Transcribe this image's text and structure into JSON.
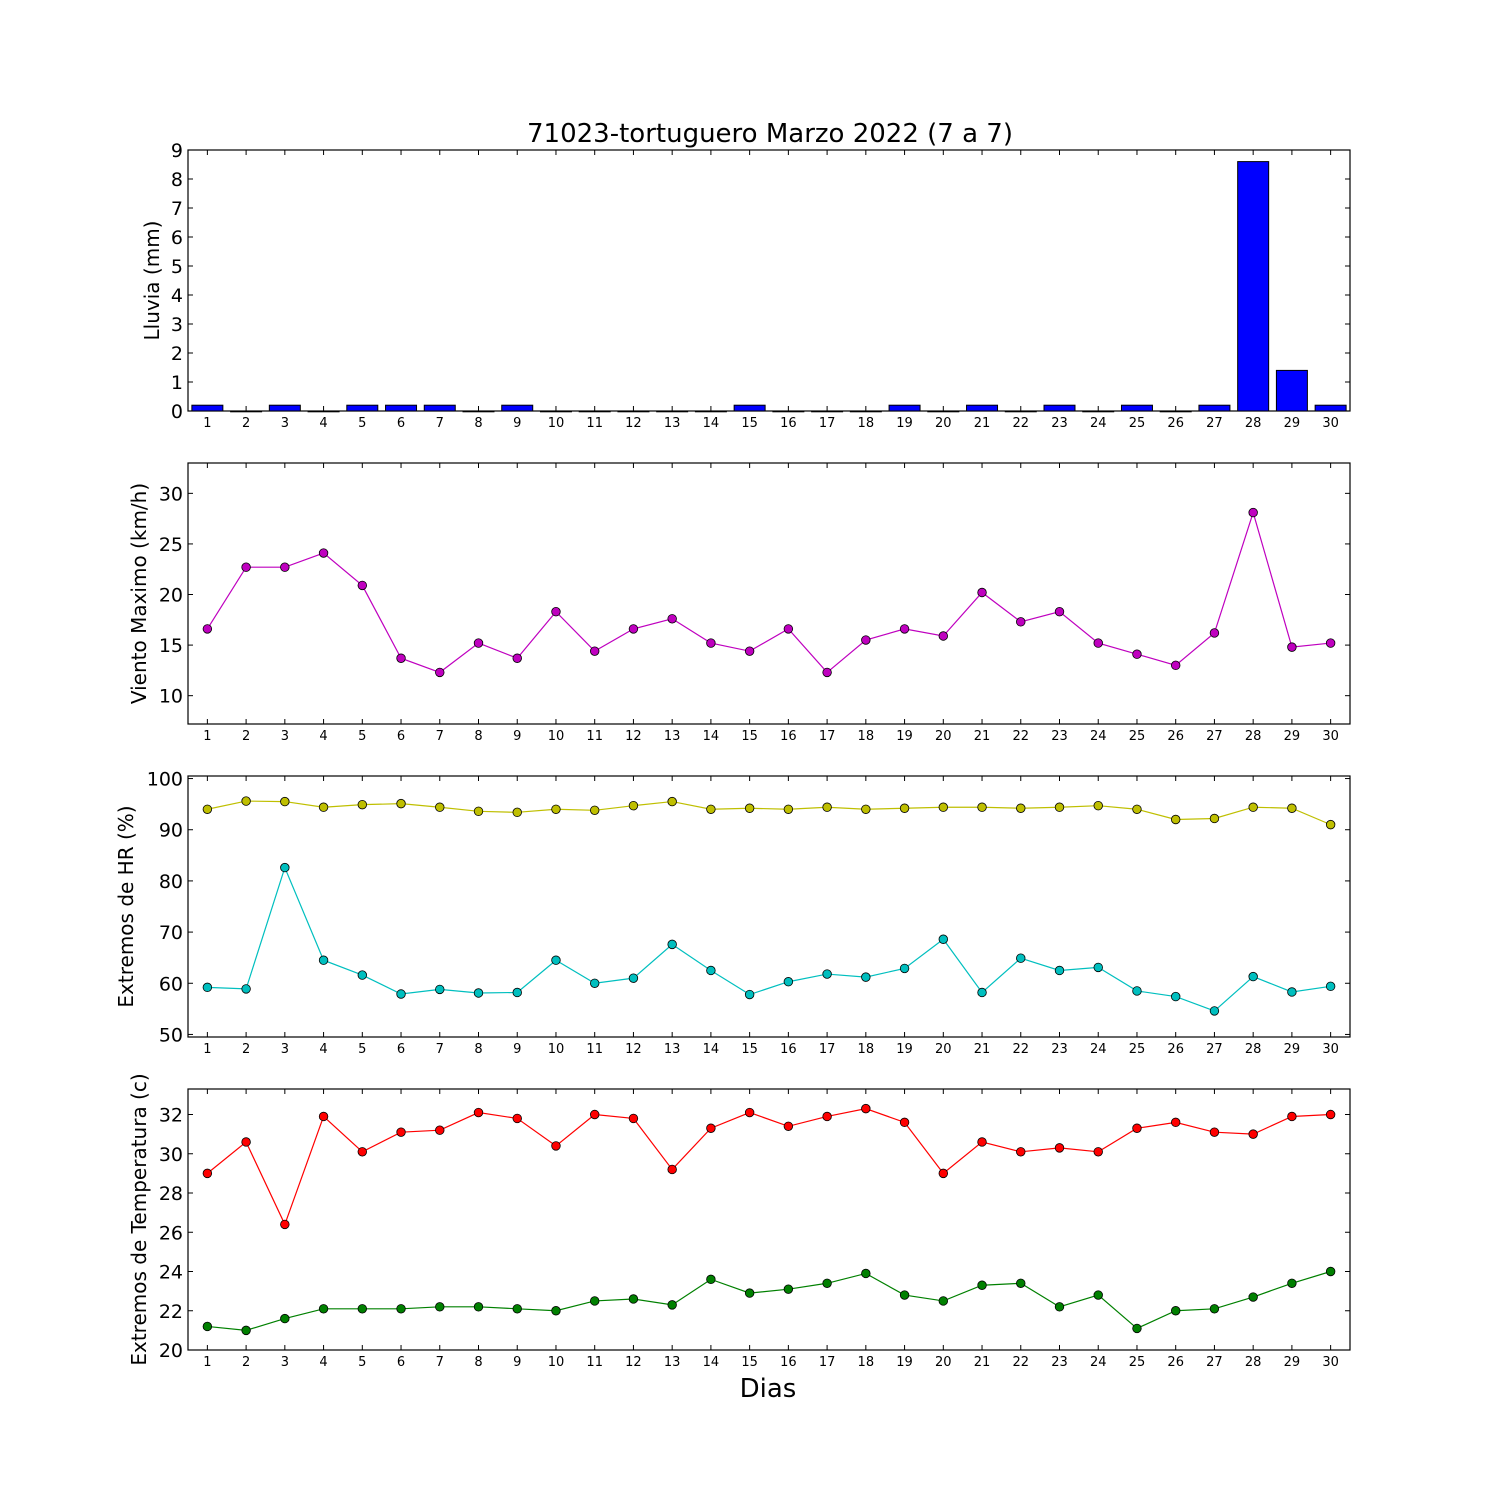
{
  "title": "71023-tortuguero Marzo 2022  (7 a 7)",
  "xlabel": "Dias",
  "chart_data": [
    {
      "type": "bar",
      "ylabel": "Lluvia (mm)",
      "ylim": [
        0,
        9
      ],
      "yticks": [
        0,
        1,
        2,
        3,
        4,
        5,
        6,
        7,
        8,
        9
      ],
      "categories": [
        1,
        2,
        3,
        4,
        5,
        6,
        7,
        8,
        9,
        10,
        11,
        12,
        13,
        14,
        15,
        16,
        17,
        18,
        19,
        20,
        21,
        22,
        23,
        24,
        25,
        26,
        27,
        28,
        29,
        30
      ],
      "series": [
        {
          "color": "#0000ff",
          "values": [
            0.2,
            0,
            0.2,
            0,
            0.2,
            0.2,
            0.2,
            0,
            0.2,
            0,
            0,
            0,
            0,
            0,
            0.2,
            0,
            0,
            0,
            0.2,
            0,
            0.2,
            0,
            0.2,
            0,
            0.2,
            0,
            0.2,
            8.6,
            1.4,
            0.2
          ]
        }
      ]
    },
    {
      "type": "line",
      "ylabel": "Viento Maximo (km/h)",
      "ylim": [
        7.2,
        33
      ],
      "yticks": [
        10,
        15,
        20,
        25,
        30
      ],
      "categories": [
        1,
        2,
        3,
        4,
        5,
        6,
        7,
        8,
        9,
        10,
        11,
        12,
        13,
        14,
        15,
        16,
        17,
        18,
        19,
        20,
        21,
        22,
        23,
        24,
        25,
        26,
        27,
        28,
        29,
        30
      ],
      "series": [
        {
          "color": "#bf00bf",
          "values": [
            16.6,
            22.7,
            22.7,
            24.1,
            20.9,
            13.7,
            12.3,
            15.2,
            13.7,
            18.3,
            14.4,
            16.6,
            17.6,
            15.2,
            14.4,
            16.6,
            12.3,
            15.5,
            16.6,
            15.9,
            20.2,
            17.3,
            18.3,
            15.2,
            14.1,
            13.0,
            16.2,
            28.1,
            14.8,
            15.2
          ]
        }
      ]
    },
    {
      "type": "line",
      "ylabel": "Extremos de HR (%)",
      "ylim": [
        49.5,
        100.5
      ],
      "yticks": [
        50,
        60,
        70,
        80,
        90,
        100
      ],
      "categories": [
        1,
        2,
        3,
        4,
        5,
        6,
        7,
        8,
        9,
        10,
        11,
        12,
        13,
        14,
        15,
        16,
        17,
        18,
        19,
        20,
        21,
        22,
        23,
        24,
        25,
        26,
        27,
        28,
        29,
        30
      ],
      "series": [
        {
          "color": "#bfbf00",
          "values": [
            94.0,
            95.6,
            95.5,
            94.4,
            94.9,
            95.1,
            94.4,
            93.6,
            93.4,
            94.0,
            93.8,
            94.7,
            95.5,
            94.0,
            94.2,
            94.0,
            94.4,
            94.0,
            94.2,
            94.4,
            94.4,
            94.2,
            94.4,
            94.7,
            94.0,
            92.0,
            92.2,
            94.4,
            94.2,
            91.0
          ]
        },
        {
          "color": "#00bfbf",
          "values": [
            59.2,
            58.9,
            82.6,
            64.5,
            61.6,
            57.9,
            58.8,
            58.1,
            58.2,
            64.5,
            60.0,
            61.0,
            67.6,
            62.5,
            57.8,
            60.3,
            61.8,
            61.2,
            62.9,
            68.6,
            58.2,
            64.9,
            62.5,
            63.1,
            58.5,
            57.4,
            54.6,
            61.3,
            58.3,
            59.4
          ]
        }
      ]
    },
    {
      "type": "line",
      "ylabel": "Extremos de Temperatura (c)",
      "ylim": [
        20,
        33.3
      ],
      "yticks": [
        20,
        22,
        24,
        26,
        28,
        30,
        32
      ],
      "categories": [
        1,
        2,
        3,
        4,
        5,
        6,
        7,
        8,
        9,
        10,
        11,
        12,
        13,
        14,
        15,
        16,
        17,
        18,
        19,
        20,
        21,
        22,
        23,
        24,
        25,
        26,
        27,
        28,
        29,
        30
      ],
      "series": [
        {
          "color": "#ff0000",
          "values": [
            29.0,
            30.6,
            26.4,
            31.9,
            30.1,
            31.1,
            31.2,
            32.1,
            31.8,
            30.4,
            32.0,
            31.8,
            29.2,
            31.3,
            32.1,
            31.4,
            31.9,
            32.3,
            31.6,
            29.0,
            30.6,
            30.1,
            30.3,
            30.1,
            31.3,
            31.6,
            31.1,
            31.0,
            31.9,
            32.0
          ]
        },
        {
          "color": "#008000",
          "values": [
            21.2,
            21.0,
            21.6,
            22.1,
            22.1,
            22.1,
            22.2,
            22.2,
            22.1,
            22.0,
            22.5,
            22.6,
            22.3,
            23.6,
            22.9,
            23.1,
            23.4,
            23.9,
            22.8,
            22.5,
            23.3,
            23.4,
            22.2,
            22.8,
            21.1,
            22.0,
            22.1,
            22.7,
            23.4,
            24.0
          ]
        }
      ]
    }
  ]
}
